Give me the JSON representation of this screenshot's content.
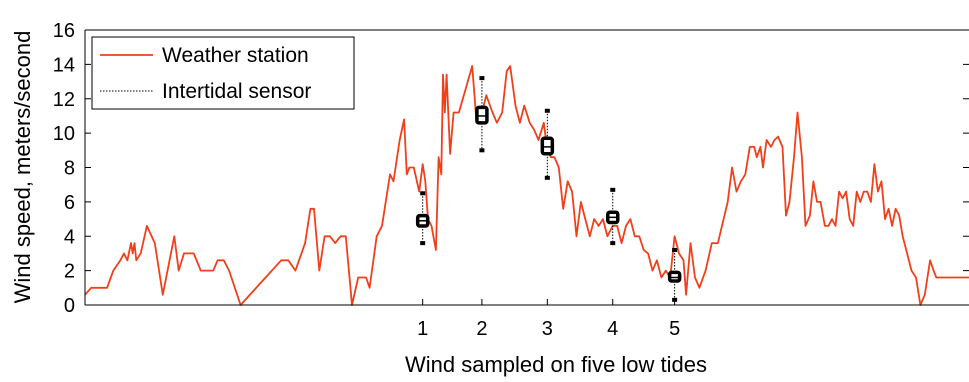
{
  "chart_data": {
    "type": "line",
    "title": "",
    "xlabel": "Wind sampled on five low tides",
    "ylabel": "Wind speed, meters/second",
    "ylim": [
      0,
      16
    ],
    "yticks": [
      "0",
      "2",
      "4",
      "6",
      "8",
      "10",
      "12",
      "14",
      "16"
    ],
    "xlim": [
      0,
      1
    ],
    "xticks": [
      {
        "label": "1",
        "x": 0.382
      },
      {
        "label": "2",
        "x": 0.449
      },
      {
        "label": "3",
        "x": 0.523
      },
      {
        "label": "4",
        "x": 0.597
      },
      {
        "label": "5",
        "x": 0.667
      }
    ],
    "grid": false,
    "legend_position": "top-left",
    "series": [
      {
        "name": "Weather station",
        "color": "#f0401a",
        "style": "line",
        "points": [
          [
            0.0,
            0.6
          ],
          [
            0.007,
            1.0
          ],
          [
            0.025,
            1.0
          ],
          [
            0.032,
            2.0
          ],
          [
            0.04,
            2.6
          ],
          [
            0.044,
            3.0
          ],
          [
            0.048,
            2.6
          ],
          [
            0.052,
            3.6
          ],
          [
            0.054,
            3.0
          ],
          [
            0.056,
            3.6
          ],
          [
            0.058,
            2.6
          ],
          [
            0.063,
            3.0
          ],
          [
            0.07,
            4.6
          ],
          [
            0.079,
            3.6
          ],
          [
            0.088,
            0.6
          ],
          [
            0.101,
            4.0
          ],
          [
            0.106,
            2.0
          ],
          [
            0.112,
            3.0
          ],
          [
            0.123,
            3.0
          ],
          [
            0.131,
            2.0
          ],
          [
            0.145,
            2.0
          ],
          [
            0.15,
            2.6
          ],
          [
            0.157,
            2.6
          ],
          [
            0.163,
            2.0
          ],
          [
            0.176,
            0.0
          ],
          [
            0.222,
            2.6
          ],
          [
            0.23,
            2.6
          ],
          [
            0.238,
            2.0
          ],
          [
            0.249,
            3.6
          ],
          [
            0.255,
            5.6
          ],
          [
            0.259,
            5.6
          ],
          [
            0.265,
            2.0
          ],
          [
            0.271,
            4.0
          ],
          [
            0.277,
            4.0
          ],
          [
            0.283,
            3.6
          ],
          [
            0.289,
            4.0
          ],
          [
            0.295,
            4.0
          ],
          [
            0.302,
            0.0
          ],
          [
            0.309,
            1.6
          ],
          [
            0.318,
            1.6
          ],
          [
            0.322,
            1.0
          ],
          [
            0.33,
            4.0
          ],
          [
            0.336,
            4.6
          ],
          [
            0.345,
            7.6
          ],
          [
            0.349,
            7.2
          ],
          [
            0.356,
            9.6
          ],
          [
            0.361,
            10.8
          ],
          [
            0.364,
            7.6
          ],
          [
            0.367,
            8.0
          ],
          [
            0.372,
            8.0
          ],
          [
            0.378,
            6.6
          ],
          [
            0.382,
            8.2
          ],
          [
            0.385,
            7.2
          ],
          [
            0.388,
            5.0
          ],
          [
            0.392,
            4.6
          ],
          [
            0.397,
            3.2
          ],
          [
            0.4,
            8.6
          ],
          [
            0.403,
            7.6
          ],
          [
            0.405,
            13.4
          ],
          [
            0.407,
            11.2
          ],
          [
            0.409,
            13.4
          ],
          [
            0.413,
            8.8
          ],
          [
            0.417,
            11.2
          ],
          [
            0.423,
            11.2
          ],
          [
            0.438,
            13.9
          ],
          [
            0.443,
            10.6
          ],
          [
            0.449,
            11.2
          ],
          [
            0.454,
            12.2
          ],
          [
            0.461,
            11.2
          ],
          [
            0.466,
            10.6
          ],
          [
            0.472,
            11.2
          ],
          [
            0.477,
            13.6
          ],
          [
            0.481,
            13.9
          ],
          [
            0.487,
            11.6
          ],
          [
            0.492,
            10.6
          ],
          [
            0.497,
            11.6
          ],
          [
            0.503,
            10.6
          ],
          [
            0.508,
            10.2
          ],
          [
            0.513,
            9.6
          ],
          [
            0.519,
            10.6
          ],
          [
            0.523,
            9.0
          ],
          [
            0.527,
            8.6
          ],
          [
            0.531,
            8.6
          ],
          [
            0.536,
            8.0
          ],
          [
            0.541,
            5.6
          ],
          [
            0.546,
            7.2
          ],
          [
            0.551,
            6.6
          ],
          [
            0.556,
            4.0
          ],
          [
            0.561,
            6.0
          ],
          [
            0.566,
            5.0
          ],
          [
            0.571,
            4.0
          ],
          [
            0.576,
            5.0
          ],
          [
            0.581,
            4.6
          ],
          [
            0.586,
            5.0
          ],
          [
            0.591,
            4.0
          ],
          [
            0.597,
            4.6
          ],
          [
            0.602,
            4.6
          ],
          [
            0.607,
            3.6
          ],
          [
            0.612,
            4.6
          ],
          [
            0.617,
            5.0
          ],
          [
            0.622,
            4.0
          ],
          [
            0.627,
            4.0
          ],
          [
            0.632,
            3.2
          ],
          [
            0.637,
            3.0
          ],
          [
            0.642,
            2.0
          ],
          [
            0.647,
            2.6
          ],
          [
            0.652,
            1.6
          ],
          [
            0.657,
            2.0
          ],
          [
            0.662,
            1.6
          ],
          [
            0.667,
            4.0
          ],
          [
            0.672,
            3.0
          ],
          [
            0.677,
            2.6
          ],
          [
            0.68,
            0.6
          ],
          [
            0.685,
            3.6
          ],
          [
            0.69,
            1.6
          ],
          [
            0.695,
            1.0
          ],
          [
            0.702,
            2.0
          ],
          [
            0.709,
            3.6
          ],
          [
            0.716,
            3.6
          ],
          [
            0.727,
            6.0
          ],
          [
            0.732,
            8.0
          ],
          [
            0.737,
            6.6
          ],
          [
            0.742,
            7.2
          ],
          [
            0.747,
            7.6
          ],
          [
            0.752,
            9.2
          ],
          [
            0.757,
            9.2
          ],
          [
            0.76,
            8.6
          ],
          [
            0.764,
            9.2
          ],
          [
            0.767,
            8.0
          ],
          [
            0.771,
            9.6
          ],
          [
            0.776,
            9.2
          ],
          [
            0.78,
            9.6
          ],
          [
            0.784,
            9.8
          ],
          [
            0.789,
            9.2
          ],
          [
            0.793,
            5.2
          ],
          [
            0.797,
            6.0
          ],
          [
            0.802,
            8.6
          ],
          [
            0.806,
            11.2
          ],
          [
            0.811,
            8.6
          ],
          [
            0.815,
            4.6
          ],
          [
            0.82,
            5.2
          ],
          [
            0.824,
            7.2
          ],
          [
            0.828,
            6.0
          ],
          [
            0.832,
            6.0
          ],
          [
            0.837,
            4.6
          ],
          [
            0.841,
            4.6
          ],
          [
            0.845,
            5.0
          ],
          [
            0.849,
            4.6
          ],
          [
            0.853,
            6.6
          ],
          [
            0.857,
            6.2
          ],
          [
            0.861,
            6.6
          ],
          [
            0.865,
            5.0
          ],
          [
            0.869,
            4.6
          ],
          [
            0.873,
            6.6
          ],
          [
            0.877,
            6.0
          ],
          [
            0.881,
            6.6
          ],
          [
            0.885,
            6.6
          ],
          [
            0.889,
            6.0
          ],
          [
            0.893,
            8.2
          ],
          [
            0.897,
            6.6
          ],
          [
            0.901,
            7.2
          ],
          [
            0.905,
            5.0
          ],
          [
            0.909,
            5.6
          ],
          [
            0.913,
            4.6
          ],
          [
            0.917,
            5.6
          ],
          [
            0.921,
            5.2
          ],
          [
            0.925,
            4.0
          ],
          [
            0.93,
            3.0
          ],
          [
            0.935,
            2.0
          ],
          [
            0.94,
            1.6
          ],
          [
            0.945,
            0.0
          ],
          [
            0.95,
            0.6
          ],
          [
            0.956,
            2.6
          ],
          [
            0.96,
            2.0
          ],
          [
            0.963,
            1.6
          ],
          [
            1.0,
            1.6
          ]
        ]
      },
      {
        "name": "Intertidal sensor",
        "color": "#000000",
        "style": "boxplot",
        "boxes": [
          {
            "label": "1",
            "x": 0.382,
            "min": 3.6,
            "q1": 4.6,
            "median": 4.9,
            "q3": 5.2,
            "max": 6.5
          },
          {
            "label": "2",
            "x": 0.449,
            "min": 9.0,
            "q1": 10.6,
            "median": 11.0,
            "q3": 11.5,
            "max": 13.2
          },
          {
            "label": "3",
            "x": 0.523,
            "min": 7.4,
            "q1": 8.8,
            "median": 9.2,
            "q3": 9.7,
            "max": 11.3
          },
          {
            "label": "4",
            "x": 0.597,
            "min": 3.6,
            "q1": 4.8,
            "median": 5.1,
            "q3": 5.4,
            "max": 6.7
          },
          {
            "label": "5",
            "x": 0.667,
            "min": 0.3,
            "q1": 1.4,
            "median": 1.6,
            "q3": 1.9,
            "max": 3.2
          }
        ]
      }
    ]
  }
}
